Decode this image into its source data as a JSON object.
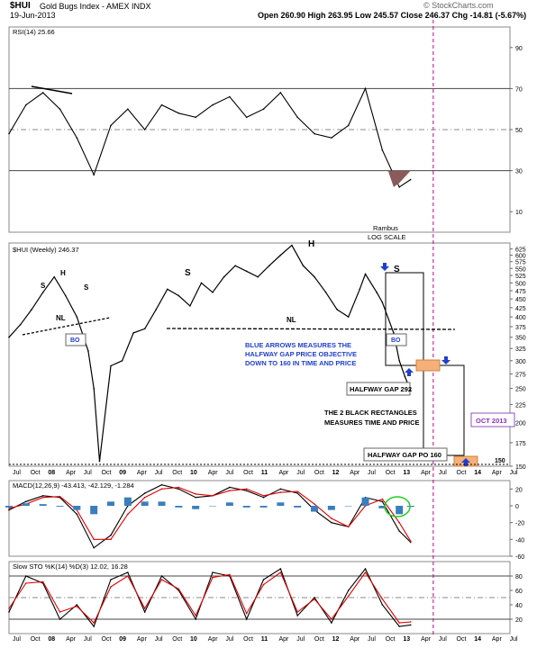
{
  "header": {
    "symbol": "$HUI",
    "name": "Gold Bugs Index - AMEX INDX",
    "date": "19-Jun-2013",
    "quote": "Open 260.90  High 263.95  Low 245.57  Close 246.37  Chg -14.81 (-5.67%)",
    "watermark": "© StockCharts.com"
  },
  "colors": {
    "line": "#000000",
    "signal": "#e00000",
    "histogram": "#3a7ebf",
    "arrow": "#1f3fd0",
    "box_orange": "#f5b07a",
    "dashed_purple": "#c00090",
    "annotation_blue": "#1f3fd0",
    "rsi_fill": "#8b5a5a",
    "highlight_circle": "#22cc22"
  },
  "chart_data": [
    {
      "type": "line",
      "panel": "rsi",
      "title": "RSI(14) 25.66",
      "ylim": [
        0,
        100
      ],
      "yticks": [
        10,
        30,
        50,
        70,
        90
      ],
      "reference_lines": [
        30,
        50,
        70
      ],
      "x": [
        "2007-07",
        "2007-10",
        "2008-01",
        "2008-04",
        "2008-07",
        "2008-10",
        "2009-01",
        "2009-04",
        "2009-07",
        "2009-10",
        "2010-01",
        "2010-04",
        "2010-07",
        "2010-10",
        "2011-01",
        "2011-04",
        "2011-07",
        "2011-10",
        "2012-01",
        "2012-04",
        "2012-07",
        "2012-10",
        "2013-01",
        "2013-04",
        "2013-06"
      ],
      "values": [
        48,
        62,
        68,
        60,
        46,
        28,
        52,
        60,
        50,
        62,
        58,
        56,
        62,
        66,
        56,
        60,
        68,
        56,
        48,
        46,
        52,
        70,
        40,
        22,
        25.66
      ],
      "annotations": [
        "Rambus",
        "LOG SCALE"
      ]
    },
    {
      "type": "line",
      "panel": "price",
      "title": "$HUI (Weekly) 246.37",
      "scale": "log",
      "ylim": [
        150,
        650
      ],
      "yticks": [
        150,
        175,
        200,
        225,
        250,
        275,
        300,
        325,
        350,
        375,
        400,
        425,
        450,
        475,
        500,
        525,
        550,
        575,
        600,
        625
      ],
      "x": [
        "2007-07",
        "2007-09",
        "2007-11",
        "2008-01",
        "2008-03",
        "2008-05",
        "2008-07",
        "2008-09",
        "2008-10",
        "2008-11",
        "2009-01",
        "2009-03",
        "2009-05",
        "2009-07",
        "2009-09",
        "2009-11",
        "2010-01",
        "2010-03",
        "2010-05",
        "2010-07",
        "2010-09",
        "2010-11",
        "2011-01",
        "2011-03",
        "2011-05",
        "2011-07",
        "2011-09",
        "2011-11",
        "2012-01",
        "2012-03",
        "2012-05",
        "2012-07",
        "2012-09",
        "2012-10",
        "2012-12",
        "2013-01",
        "2013-03",
        "2013-04",
        "2013-05",
        "2013-06"
      ],
      "values": [
        350,
        380,
        420,
        470,
        520,
        460,
        400,
        320,
        250,
        155,
        290,
        300,
        360,
        370,
        420,
        480,
        460,
        430,
        500,
        470,
        520,
        560,
        540,
        520,
        560,
        600,
        640,
        560,
        520,
        470,
        420,
        400,
        480,
        530,
        470,
        440,
        360,
        300,
        270,
        246.37
      ],
      "annotations": [
        "S",
        "H",
        "S",
        "NL",
        "BO",
        "S",
        "H",
        "S",
        "NL",
        "BO",
        "BLUE ARROWS MEASURES THE",
        "HALFWAY GAP PRICE OBJECTIVE",
        "DOWN TO 160 IN TIME AND PRICE",
        "HALFWAY GAP 292",
        "THE 2 BLACK RECTANGLES",
        "MEASURES TIME AND PRICE",
        "OCT 2013",
        "HALFWAY GAP PO 160",
        "150"
      ]
    },
    {
      "type": "line",
      "panel": "macd",
      "title": "MACD(12,26,9) -43.413, -42.129, -1.284",
      "ylim": [
        -60,
        30
      ],
      "yticks": [
        -60,
        -40,
        -20,
        0,
        20
      ],
      "x": [
        "2007-07",
        "2007-10",
        "2008-01",
        "2008-04",
        "2008-07",
        "2008-10",
        "2009-01",
        "2009-04",
        "2009-07",
        "2009-10",
        "2010-01",
        "2010-04",
        "2010-07",
        "2010-10",
        "2011-01",
        "2011-04",
        "2011-07",
        "2011-10",
        "2012-01",
        "2012-04",
        "2012-07",
        "2012-10",
        "2013-01",
        "2013-04",
        "2013-06"
      ],
      "series": [
        {
          "name": "MACD",
          "values": [
            -5,
            5,
            12,
            10,
            -10,
            -50,
            -35,
            0,
            15,
            25,
            20,
            10,
            12,
            22,
            18,
            10,
            20,
            15,
            -5,
            -20,
            -25,
            10,
            5,
            -30,
            -43.413
          ]
        },
        {
          "name": "Signal",
          "values": [
            -3,
            2,
            10,
            11,
            -5,
            -40,
            -40,
            -10,
            10,
            20,
            22,
            14,
            12,
            18,
            20,
            12,
            16,
            17,
            2,
            -15,
            -25,
            0,
            8,
            -20,
            -42.129
          ]
        },
        {
          "name": "Histogram",
          "values": [
            -2,
            3,
            2,
            -1,
            -5,
            -10,
            5,
            10,
            5,
            5,
            -2,
            -4,
            0,
            4,
            -2,
            -2,
            4,
            -2,
            -7,
            -5,
            0,
            10,
            -3,
            -10,
            -1.284
          ]
        }
      ]
    },
    {
      "type": "line",
      "panel": "sto",
      "title": "Slow STO %K(14) %D(3) 12.02, 16.28",
      "ylim": [
        0,
        100
      ],
      "yticks": [
        20,
        40,
        60,
        80
      ],
      "reference_lines": [
        20,
        50,
        80
      ],
      "x": [
        "2007-07",
        "2007-10",
        "2008-01",
        "2008-04",
        "2008-07",
        "2008-10",
        "2009-01",
        "2009-04",
        "2009-07",
        "2009-10",
        "2010-01",
        "2010-04",
        "2010-07",
        "2010-10",
        "2011-01",
        "2011-04",
        "2011-07",
        "2011-10",
        "2012-01",
        "2012-04",
        "2012-07",
        "2012-10",
        "2013-01",
        "2013-04",
        "2013-06"
      ],
      "series": [
        {
          "name": "%K",
          "values": [
            30,
            80,
            70,
            20,
            40,
            10,
            75,
            85,
            30,
            80,
            60,
            20,
            85,
            80,
            20,
            75,
            90,
            25,
            50,
            15,
            60,
            90,
            40,
            10,
            12.02
          ]
        },
        {
          "name": "%D",
          "values": [
            35,
            70,
            72,
            30,
            38,
            15,
            65,
            80,
            35,
            75,
            62,
            25,
            78,
            82,
            28,
            68,
            85,
            30,
            48,
            20,
            52,
            85,
            48,
            15,
            16.28
          ]
        }
      ]
    }
  ],
  "x_axis_labels": [
    "Jul",
    "Oct",
    "08",
    "Apr",
    "Jul",
    "Oct",
    "09",
    "Apr",
    "Jul",
    "Oct",
    "10",
    "Apr",
    "Jul",
    "Oct",
    "11",
    "Apr",
    "Jul",
    "Oct",
    "12",
    "Apr",
    "Jul",
    "Oct",
    "13",
    "Apr",
    "Jul",
    "Oct",
    "14",
    "Apr",
    "Jul"
  ]
}
